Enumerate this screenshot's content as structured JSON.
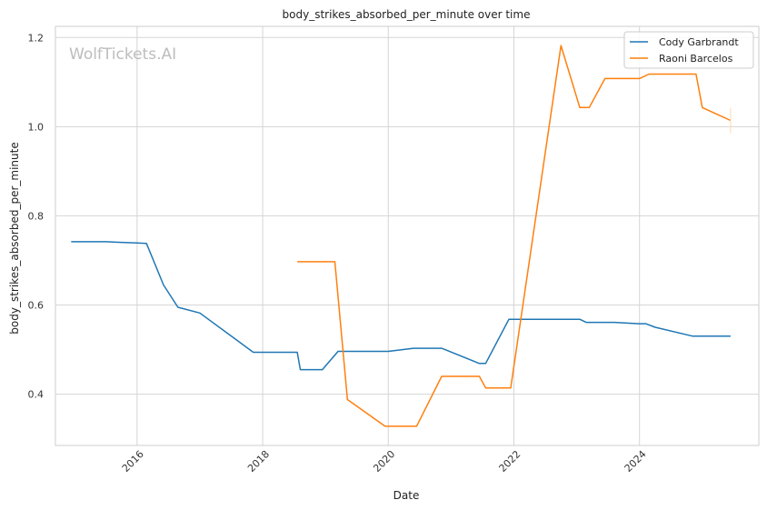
{
  "watermark": "WolfTickets.AI",
  "chart_data": {
    "type": "line",
    "title": "body_strikes_absorbed_per_minute over time",
    "xlabel": "Date",
    "ylabel": "body_strikes_absorbed_per_minute",
    "xlim": [
      2014.7,
      2025.9
    ],
    "ylim": [
      0.285,
      1.225
    ],
    "x_ticks": [
      {
        "value": 2016,
        "label": "2016"
      },
      {
        "value": 2018,
        "label": "2018"
      },
      {
        "value": 2020,
        "label": "2020"
      },
      {
        "value": 2022,
        "label": "2022"
      },
      {
        "value": 2024,
        "label": "2024"
      }
    ],
    "y_ticks": [
      {
        "value": 0.4,
        "label": "0.4"
      },
      {
        "value": 0.6,
        "label": "0.6"
      },
      {
        "value": 0.8,
        "label": "0.8"
      },
      {
        "value": 1.0,
        "label": "1.0"
      },
      {
        "value": 1.2,
        "label": "1.2"
      }
    ],
    "grid": true,
    "legend_position": "top-right",
    "series": [
      {
        "name": "Cody Garbrandt",
        "color": "#1f77b4",
        "x": [
          2014.95,
          2015.5,
          2016.0,
          2016.15,
          2016.42,
          2016.65,
          2017.0,
          2017.85,
          2018.55,
          2018.6,
          2018.95,
          2019.2,
          2020.0,
          2020.4,
          2020.85,
          2021.45,
          2021.55,
          2021.92,
          2023.05,
          2023.15,
          2023.6,
          2024.0,
          2024.1,
          2024.25,
          2024.85,
          2025.45
        ],
        "y": [
          0.742,
          0.742,
          0.739,
          0.738,
          0.645,
          0.595,
          0.582,
          0.494,
          0.494,
          0.455,
          0.455,
          0.496,
          0.496,
          0.503,
          0.503,
          0.469,
          0.469,
          0.568,
          0.568,
          0.561,
          0.561,
          0.558,
          0.558,
          0.55,
          0.53,
          0.53
        ]
      },
      {
        "name": "Raoni Barcelos",
        "color": "#ff7f0e",
        "x": [
          2018.55,
          2019.15,
          2019.35,
          2019.95,
          2020.45,
          2020.85,
          2021.45,
          2021.55,
          2021.95,
          2022.75,
          2023.05,
          2023.2,
          2023.45,
          2024.0,
          2024.15,
          2024.9,
          2025.0,
          2025.45
        ],
        "y": [
          0.697,
          0.697,
          0.388,
          0.328,
          0.328,
          0.44,
          0.44,
          0.414,
          0.414,
          1.182,
          1.043,
          1.043,
          1.108,
          1.108,
          1.118,
          1.118,
          1.043,
          1.014
        ]
      }
    ]
  }
}
